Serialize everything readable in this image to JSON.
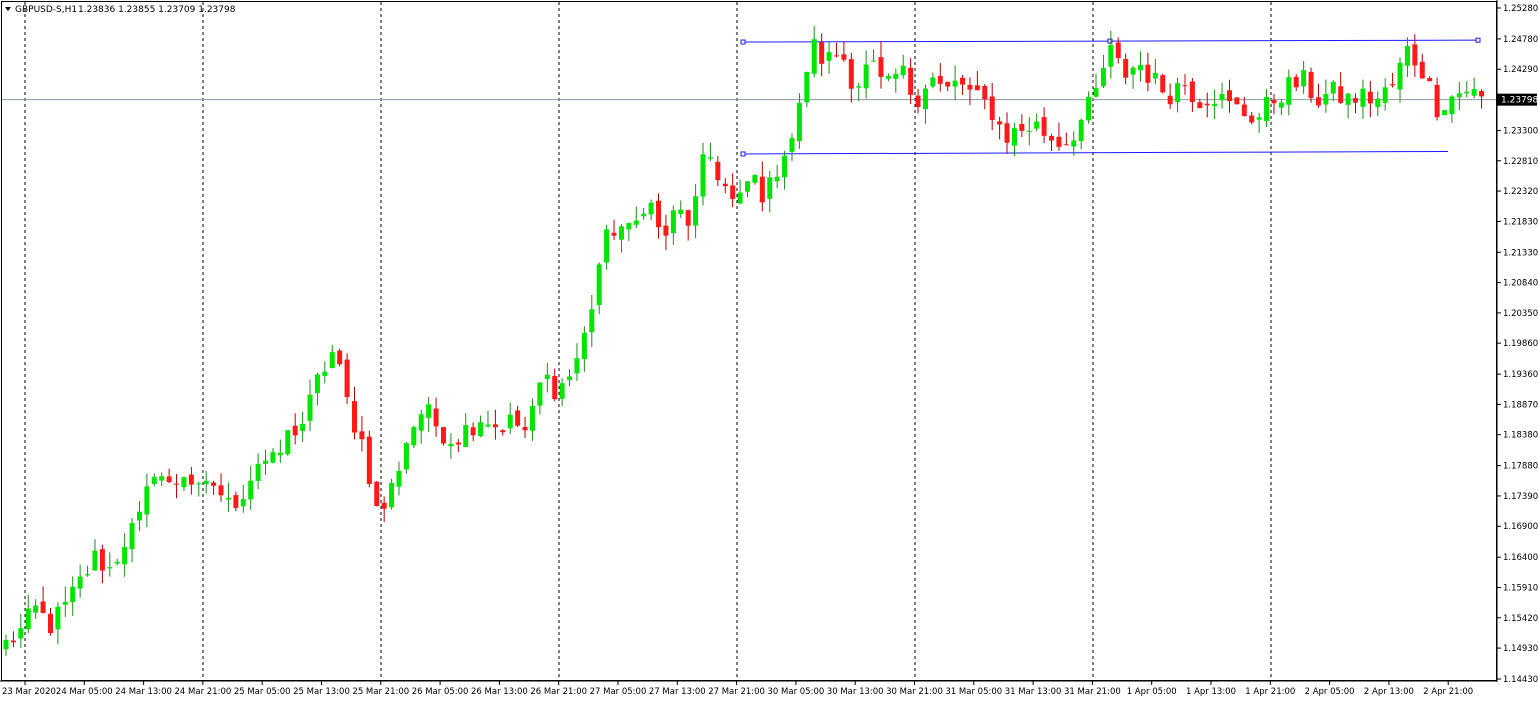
{
  "header": {
    "symbol_label": "GBPUSD-S,H1",
    "ohlc_label": "1.23836 1.23855 1.23709 1.23798"
  },
  "colors": {
    "bull": "#00e600",
    "bear": "#ff1a1a",
    "grid": "#000000",
    "axis": "#000000",
    "channel": "#1a1aff",
    "price_line": "#8a9aa6",
    "price_tag_bg": "#000000",
    "price_tag_text": "#ffffff"
  },
  "chart_data": {
    "type": "candlestick",
    "symbol": "GBPUSD-S",
    "timeframe": "H1",
    "ylim": [
      1.1443,
      1.2528
    ],
    "y_ticks": [
      "1.25280",
      "1.24780",
      "1.24290",
      "1.23798",
      "1.23300",
      "1.22810",
      "1.22320",
      "1.21830",
      "1.21330",
      "1.20840",
      "1.20350",
      "1.19860",
      "1.19360",
      "1.18870",
      "1.18380",
      "1.17880",
      "1.17390",
      "1.16900",
      "1.16400",
      "1.15910",
      "1.15420",
      "1.14930",
      "1.14430"
    ],
    "x_labels": [
      "23 Mar 2020",
      "24 Mar 05:00",
      "24 Mar 13:00",
      "24 Mar 21:00",
      "25 Mar 05:00",
      "25 Mar 13:00",
      "25 Mar 21:00",
      "26 Mar 05:00",
      "26 Mar 13:00",
      "26 Mar 21:00",
      "27 Mar 05:00",
      "27 Mar 13:00",
      "27 Mar 21:00",
      "30 Mar 05:00",
      "30 Mar 13:00",
      "30 Mar 21:00",
      "31 Mar 05:00",
      "31 Mar 13:00",
      "31 Mar 21:00",
      "1 Apr 05:00",
      "1 Apr 13:00",
      "1 Apr 21:00",
      "2 Apr 05:00",
      "2 Apr 13:00",
      "2 Apr 21:00"
    ],
    "day_separators": [
      "24 Mar 2020",
      "25 Mar 2020",
      "26 Mar 2020",
      "27 Mar 2020",
      "30 Mar 2020",
      "31 Mar 2020",
      "1 Apr 2020",
      "2 Apr 2020"
    ],
    "current_price": "1.23798",
    "channel": {
      "upper": [
        1.2473,
        1.2476
      ],
      "lower": [
        1.2292,
        1.2296
      ]
    },
    "close_path": [
      1.15,
      1.152,
      1.1555,
      1.153,
      1.156,
      1.16,
      1.164,
      1.162,
      1.167,
      1.17,
      1.179,
      1.175,
      1.178,
      1.174,
      1.176,
      1.172,
      1.175,
      1.18,
      1.179,
      1.184,
      1.186,
      1.193,
      1.1975,
      1.188,
      1.182,
      1.17,
      1.176,
      1.184,
      1.188,
      1.185,
      1.183,
      1.185,
      1.187,
      1.185,
      1.186,
      1.184,
      1.1935,
      1.191,
      1.194,
      1.201,
      1.214,
      1.218,
      1.216,
      1.223,
      1.215,
      1.22,
      1.218,
      1.23,
      1.225,
      1.22,
      1.226,
      1.222,
      1.229,
      1.233,
      1.247,
      1.244,
      1.246,
      1.24,
      1.244,
      1.239,
      1.243,
      1.238,
      1.242,
      1.239,
      1.241,
      1.238,
      1.237,
      1.232,
      1.233,
      1.234,
      1.232,
      1.231,
      1.234,
      1.238,
      1.246,
      1.242,
      1.244,
      1.241,
      1.239,
      1.241,
      1.238,
      1.239,
      1.237,
      1.236,
      1.235,
      1.238,
      1.24,
      1.241,
      1.238,
      1.239,
      1.238,
      1.2385,
      1.238,
      1.24,
      1.246,
      1.243,
      1.237,
      1.2385,
      1.2398,
      1.238
    ]
  }
}
